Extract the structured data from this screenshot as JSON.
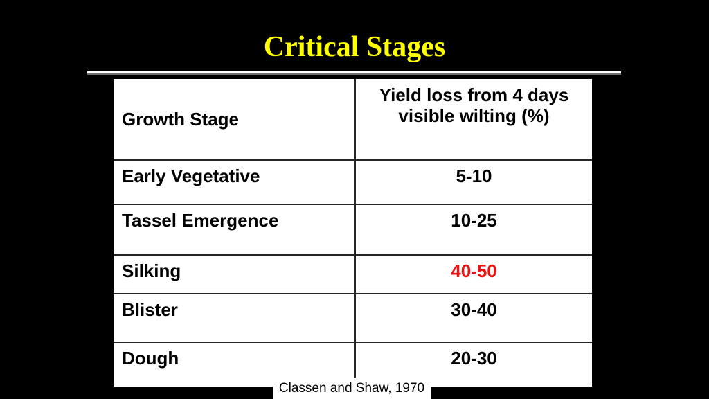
{
  "slide": {
    "title": "Critical Stages"
  },
  "colors": {
    "background": "#000000",
    "title_yellow": "#FFFF00",
    "table_bg": "#FFFFFF",
    "grid_line": "#262626",
    "text": "#000000",
    "highlight_red": "#EE1111"
  },
  "table": {
    "header": {
      "col1": "Growth Stage",
      "col2_line1": "Yield loss from 4 days",
      "col2_line2": "visible wilting (%)"
    },
    "rows": [
      {
        "stage": "Early Vegetative",
        "loss": "5-10"
      },
      {
        "stage": "Tassel Emergence",
        "loss": "10-25"
      },
      {
        "stage": "Silking",
        "loss": "40-50"
      },
      {
        "stage": "Blister",
        "loss": "30-40"
      },
      {
        "stage": "Dough",
        "loss": "20-30"
      }
    ]
  },
  "citation": {
    "text": "Classen and Shaw, 1970"
  },
  "chart_data": {
    "type": "table",
    "title": "Critical Stages",
    "columns": [
      "Growth Stage",
      "Yield loss from 4 days visible wilting (%)"
    ],
    "rows": [
      [
        "Early Vegetative",
        "5-10"
      ],
      [
        "Tassel Emergence",
        "10-25"
      ],
      [
        "Silking",
        "40-50"
      ],
      [
        "Blister",
        "30-40"
      ],
      [
        "Dough",
        "20-30"
      ]
    ],
    "highlighted_row": "Silking",
    "highlight_color": "#EE1111",
    "source": "Classen and Shaw, 1970"
  }
}
